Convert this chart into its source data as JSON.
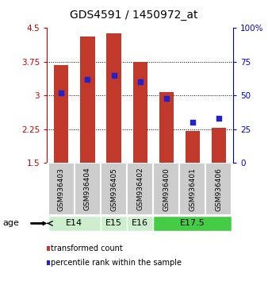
{
  "title": "GDS4591 / 1450972_at",
  "samples": [
    "GSM936403",
    "GSM936404",
    "GSM936405",
    "GSM936402",
    "GSM936400",
    "GSM936401",
    "GSM936406"
  ],
  "transformed_count": [
    3.68,
    4.32,
    4.38,
    3.75,
    3.08,
    2.22,
    2.28
  ],
  "percentile_rank_pct": [
    52,
    62,
    65,
    60,
    48,
    30,
    33
  ],
  "bar_bottom": 1.5,
  "ylim": [
    1.5,
    4.5
  ],
  "yticks": [
    1.5,
    2.25,
    3.0,
    3.75,
    4.5
  ],
  "ytick_labels": [
    "1.5",
    "2.25",
    "3",
    "3.75",
    "4.5"
  ],
  "y2lim": [
    0,
    100
  ],
  "y2ticks": [
    0,
    25,
    50,
    75,
    100
  ],
  "y2tick_labels": [
    "0",
    "25",
    "50",
    "75",
    "100%"
  ],
  "bar_color": "#c0392b",
  "dot_color": "#2222cc",
  "age_groups": [
    {
      "label": "E14",
      "span": [
        0,
        1
      ],
      "color": "#cceecc"
    },
    {
      "label": "E15",
      "span": [
        2,
        2
      ],
      "color": "#cceecc"
    },
    {
      "label": "E16",
      "span": [
        3,
        3
      ],
      "color": "#cceecc"
    },
    {
      "label": "E17.5",
      "span": [
        4,
        6
      ],
      "color": "#44cc44"
    }
  ],
  "age_label": "age",
  "legend_items": [
    {
      "color": "#c0392b",
      "label": "transformed count"
    },
    {
      "color": "#2222cc",
      "label": "percentile rank within the sample"
    }
  ],
  "title_fontsize": 10,
  "axis_color_left": "#cc0000",
  "axis_color_right": "#0000cc",
  "sample_box_color": "#cccccc",
  "grid_yticks": [
    2.25,
    3.0,
    3.75
  ]
}
